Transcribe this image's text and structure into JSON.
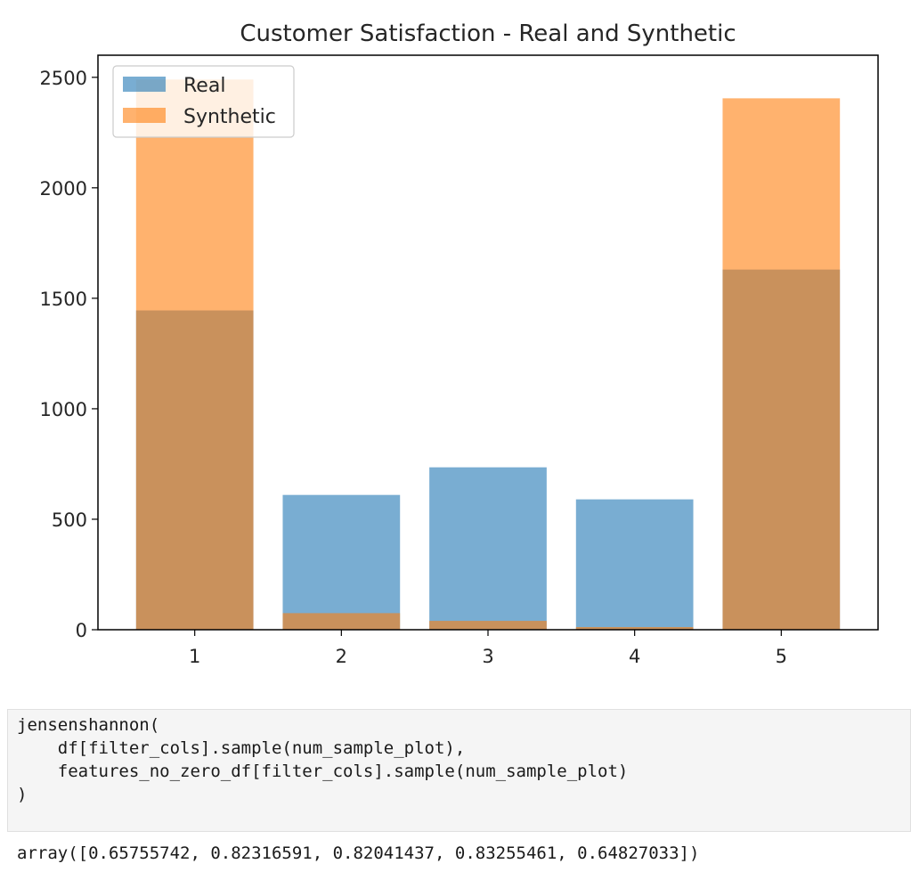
{
  "chart_data": {
    "type": "bar",
    "title": "Customer Satisfaction - Real and Synthetic",
    "xlabel": "",
    "ylabel": "",
    "categories": [
      "1",
      "2",
      "3",
      "4",
      "5"
    ],
    "series": [
      {
        "name": "Real",
        "color": "#1f77b4",
        "values": [
          1445,
          610,
          735,
          590,
          1630
        ]
      },
      {
        "name": "Synthetic",
        "color": "#ff7f0e",
        "values": [
          2490,
          75,
          40,
          12,
          2405
        ]
      }
    ],
    "ylim": [
      0,
      2600
    ],
    "yticks": [
      0,
      500,
      1000,
      1500,
      2000,
      2500
    ],
    "bar_alpha": 0.6,
    "grid": false,
    "legend": "top-left"
  },
  "code_cell": {
    "lines": [
      "jensenshannon(",
      "    df[filter_cols].sample(num_sample_plot),",
      "    features_no_zero_df[filter_cols].sample(num_sample_plot)",
      ")"
    ]
  },
  "output": {
    "text": "array([0.65755742, 0.82316591, 0.82041437, 0.83255461, 0.64827033])"
  }
}
